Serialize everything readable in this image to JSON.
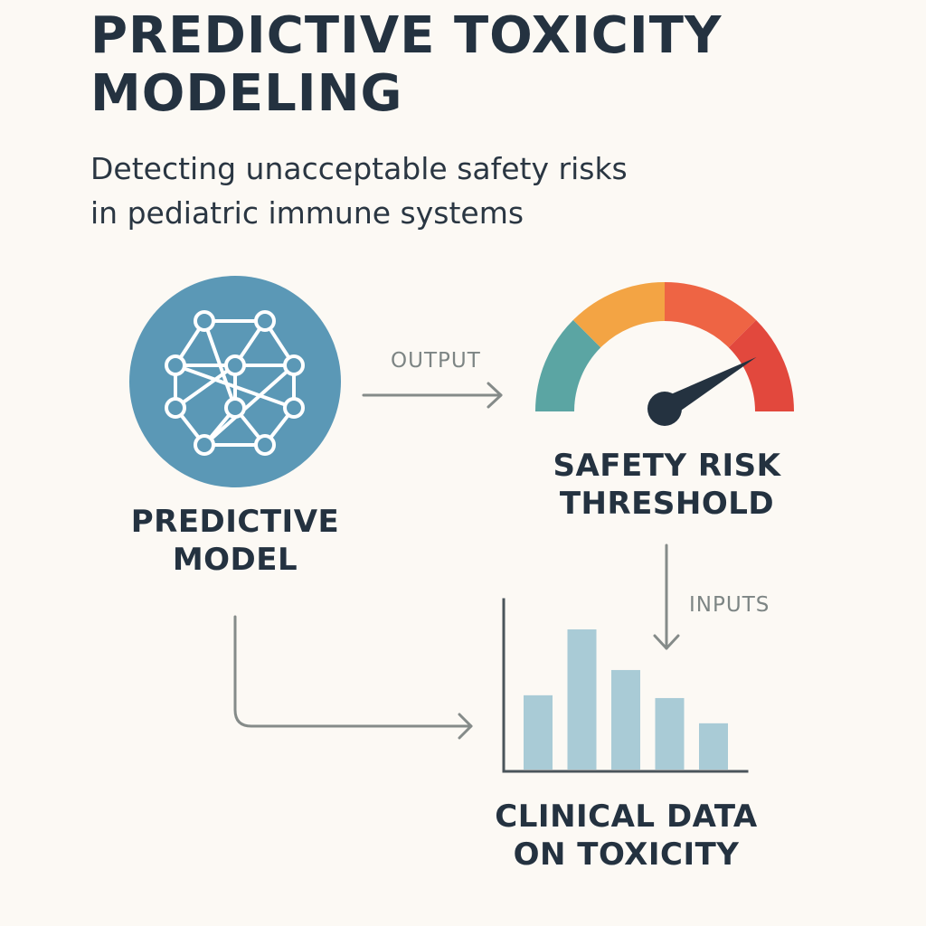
{
  "title": {
    "line1": "PREDICTIVE TOXICITY",
    "line2": "MODELING"
  },
  "subtitle": {
    "line1": "Detecting unacceptable safety risks",
    "line2": "in pediatric immune systems"
  },
  "nodes": {
    "model": {
      "line1": "PREDICTIVE",
      "line2": "MODEL",
      "icon": "neural-network-icon",
      "color": "#5b98b6"
    },
    "threshold": {
      "line1": "SAFETY RISK",
      "line2": "THRESHOLD",
      "icon": "gauge-icon"
    },
    "clinical": {
      "line1": "CLINICAL DATA",
      "line2": "ON TOXICITY",
      "icon": "bar-chart-icon"
    }
  },
  "edges": {
    "output": "OUTPUT",
    "inputs": "INPUTS"
  },
  "gauge": {
    "segment_colors": [
      "#5ba5a3",
      "#f3a444",
      "#ee6444",
      "#e2483d"
    ],
    "needle_level": 0.83
  },
  "clinical_bars": {
    "values": [
      0.53,
      1.0,
      0.71,
      0.51,
      0.33
    ],
    "color": "#a9cbd6"
  }
}
